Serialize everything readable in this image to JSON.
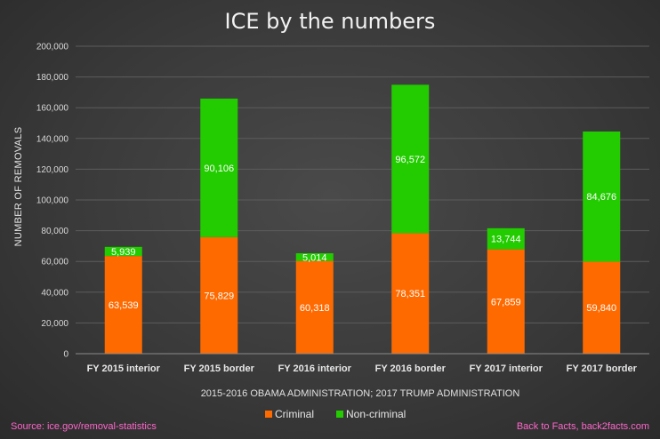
{
  "chart_data": {
    "type": "bar",
    "stacked": true,
    "title": "ICE by the numbers",
    "xlabel": "2015-2016 OBAMA ADMINISTRATION; 2017 TRUMP ADMINISTRATION",
    "ylabel": "NUMBER OF REMOVALS",
    "ylim": [
      0,
      200000
    ],
    "yticks": [
      0,
      20000,
      40000,
      60000,
      80000,
      100000,
      120000,
      140000,
      160000,
      180000,
      200000
    ],
    "ytick_labels": [
      "0",
      "20,000",
      "40,000",
      "60,000",
      "80,000",
      "100,000",
      "120,000",
      "140,000",
      "160,000",
      "180,000",
      "200,000"
    ],
    "grid": true,
    "legend": "bottom",
    "categories": [
      "FY 2015 interior",
      "FY 2015 border",
      "FY 2016 interior",
      "FY 2016 border",
      "FY 2017 interior",
      "FY 2017 border"
    ],
    "series": [
      {
        "name": "Criminal",
        "color": "#ff6a00",
        "values": [
          63539,
          75829,
          60318,
          78351,
          67859,
          59840
        ],
        "labels": [
          "63,539",
          "75,829",
          "60,318",
          "78,351",
          "67,859",
          "59,840"
        ]
      },
      {
        "name": "Non-criminal",
        "color": "#22cc00",
        "values": [
          5939,
          90106,
          5014,
          96572,
          13744,
          84676
        ],
        "labels": [
          "5,939",
          "90,106",
          "5,014",
          "96,572",
          "13,744",
          "84,676"
        ]
      }
    ]
  },
  "footer": {
    "source": "Source: ice.gov/removal-statistics",
    "credit": "Back to Facts, back2facts.com"
  }
}
